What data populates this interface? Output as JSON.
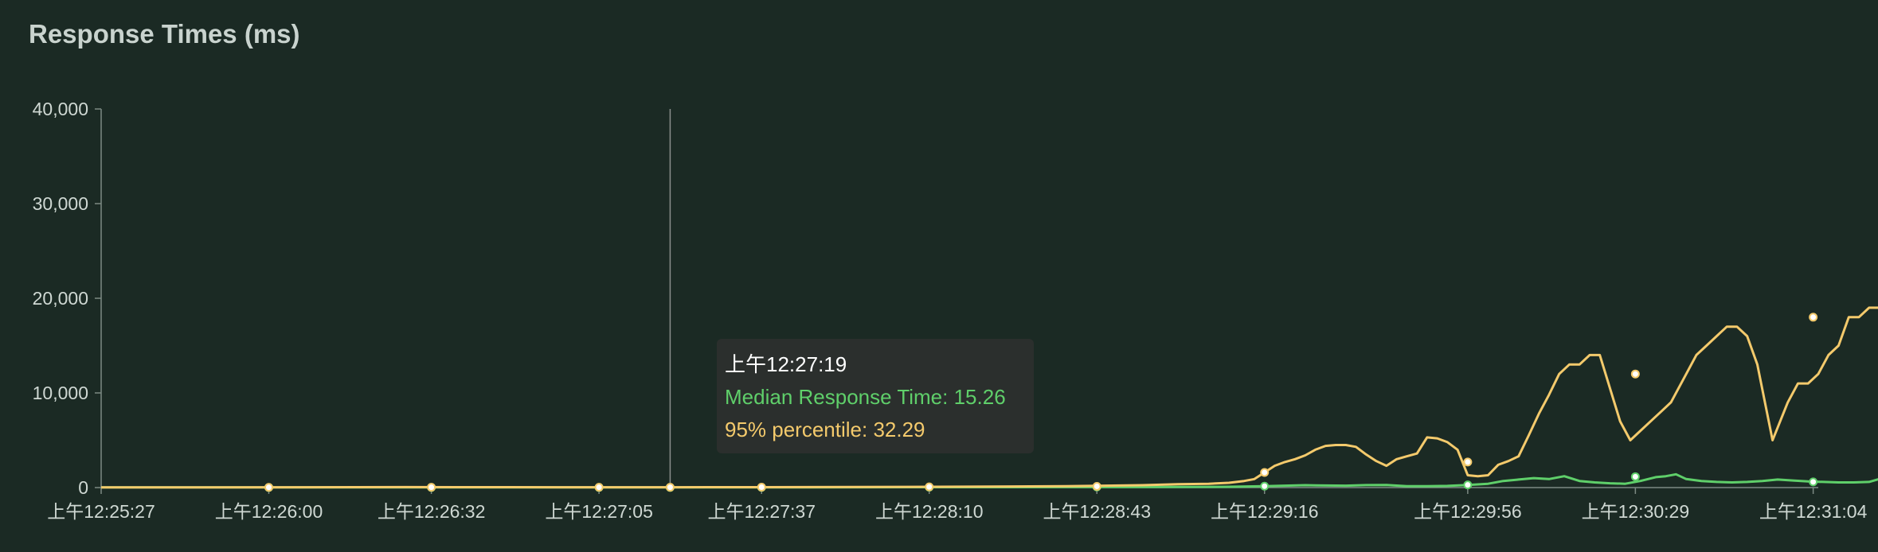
{
  "panel": {
    "title": "Response Times (ms)"
  },
  "colors": {
    "median": "#5fcf6a",
    "p95": "#f4ca6c",
    "axis": "#7c8a83",
    "text": "#cfd8d3",
    "crosshair": "#8a8f8c"
  },
  "tooltip": {
    "time": "上午12:27:19",
    "median_label": "Median Response Time: 15.26",
    "p95_label": "95% percentile: 32.29"
  },
  "chart_data": {
    "type": "line",
    "title": "Response Times (ms)",
    "ylim": [
      0,
      40000
    ],
    "y_ticks": [
      0,
      10000,
      20000,
      30000,
      40000
    ],
    "y_tick_labels": [
      "0",
      "10,000",
      "20,000",
      "30,000",
      "40,000"
    ],
    "x_tick_labels": [
      "上午12:25:27",
      "上午12:26:00",
      "上午12:26:32",
      "上午12:27:05",
      "上午12:27:37",
      "上午12:28:10",
      "上午12:28:43",
      "上午12:29:16",
      "上午12:29:56",
      "上午12:30:29",
      "上午12:31:04"
    ],
    "x_tick_seconds": [
      0,
      33,
      65,
      98,
      130,
      163,
      196,
      229,
      269,
      302,
      337
    ],
    "x_range_seconds": [
      0,
      338
    ],
    "crosshair_seconds": 112,
    "series": [
      {
        "name": "Median Response Time",
        "color": "#5fcf6a",
        "points": [
          [
            0,
            15
          ],
          [
            20,
            15
          ],
          [
            40,
            16
          ],
          [
            60,
            17
          ],
          [
            80,
            18
          ],
          [
            100,
            16
          ],
          [
            112,
            15
          ],
          [
            130,
            20
          ],
          [
            150,
            30
          ],
          [
            170,
            40
          ],
          [
            190,
            50
          ],
          [
            210,
            60
          ],
          [
            222,
            80
          ],
          [
            229,
            150
          ],
          [
            233,
            200
          ],
          [
            237,
            250
          ],
          [
            241,
            220
          ],
          [
            245,
            200
          ],
          [
            249,
            260
          ],
          [
            253,
            280
          ],
          [
            257,
            150
          ],
          [
            261,
            140
          ],
          [
            265,
            180
          ],
          [
            269,
            280
          ],
          [
            273,
            400
          ],
          [
            276,
            700
          ],
          [
            279,
            850
          ],
          [
            282,
            1000
          ],
          [
            285,
            900
          ],
          [
            288,
            1200
          ],
          [
            291,
            700
          ],
          [
            294,
            550
          ],
          [
            297,
            450
          ],
          [
            300,
            400
          ],
          [
            303,
            700
          ],
          [
            306,
            1100
          ],
          [
            308,
            1200
          ],
          [
            310,
            1400
          ],
          [
            312,
            900
          ],
          [
            315,
            700
          ],
          [
            318,
            600
          ],
          [
            321,
            550
          ],
          [
            324,
            600
          ],
          [
            327,
            700
          ],
          [
            330,
            850
          ],
          [
            333,
            750
          ],
          [
            336,
            650
          ],
          [
            339,
            600
          ],
          [
            342,
            550
          ],
          [
            345,
            550
          ],
          [
            348,
            600
          ],
          [
            350,
            900
          ],
          [
            352,
            950
          ],
          [
            354,
            950
          ]
        ],
        "markers": [
          [
            33,
            15
          ],
          [
            65,
            16
          ],
          [
            98,
            16
          ],
          [
            112,
            15.26
          ],
          [
            130,
            20
          ],
          [
            163,
            40
          ],
          [
            196,
            60
          ],
          [
            229,
            150
          ],
          [
            269,
            280
          ],
          [
            302,
            1150
          ],
          [
            337,
            600
          ]
        ]
      },
      {
        "name": "95% percentile",
        "color": "#f4ca6c",
        "points": [
          [
            0,
            20
          ],
          [
            20,
            20
          ],
          [
            40,
            30
          ],
          [
            50,
            40
          ],
          [
            60,
            50
          ],
          [
            70,
            45
          ],
          [
            80,
            40
          ],
          [
            90,
            35
          ],
          [
            100,
            32
          ],
          [
            112,
            32.29
          ],
          [
            130,
            40
          ],
          [
            150,
            60
          ],
          [
            170,
            90
          ],
          [
            190,
            150
          ],
          [
            205,
            250
          ],
          [
            212,
            350
          ],
          [
            218,
            400
          ],
          [
            222,
            500
          ],
          [
            225,
            700
          ],
          [
            227,
            900
          ],
          [
            229,
            1600
          ],
          [
            231,
            2300
          ],
          [
            233,
            2700
          ],
          [
            235,
            3000
          ],
          [
            237,
            3400
          ],
          [
            239,
            4000
          ],
          [
            241,
            4400
          ],
          [
            243,
            4500
          ],
          [
            245,
            4500
          ],
          [
            247,
            4300
          ],
          [
            249,
            3500
          ],
          [
            251,
            2800
          ],
          [
            253,
            2300
          ],
          [
            255,
            3000
          ],
          [
            257,
            3300
          ],
          [
            259,
            3600
          ],
          [
            261,
            5300
          ],
          [
            263,
            5200
          ],
          [
            265,
            4800
          ],
          [
            267,
            4000
          ],
          [
            269,
            1300
          ],
          [
            271,
            1200
          ],
          [
            273,
            1300
          ],
          [
            275,
            2400
          ],
          [
            277,
            2800
          ],
          [
            279,
            3300
          ],
          [
            281,
            5500
          ],
          [
            283,
            7800
          ],
          [
            285,
            9800
          ],
          [
            287,
            12000
          ],
          [
            289,
            13000
          ],
          [
            291,
            13000
          ],
          [
            293,
            14000
          ],
          [
            295,
            14000
          ],
          [
            299,
            7000
          ],
          [
            301,
            5000
          ],
          [
            303,
            6000
          ],
          [
            305,
            7000
          ],
          [
            307,
            8000
          ],
          [
            309,
            9000
          ],
          [
            312,
            12000
          ],
          [
            314,
            14000
          ],
          [
            316,
            15000
          ],
          [
            318,
            16000
          ],
          [
            320,
            17000
          ],
          [
            322,
            17000
          ],
          [
            324,
            16000
          ],
          [
            326,
            13000
          ],
          [
            329,
            5000
          ],
          [
            332,
            9000
          ],
          [
            334,
            11000
          ],
          [
            336,
            11000
          ],
          [
            338,
            12000
          ],
          [
            340,
            14000
          ],
          [
            342,
            15000
          ],
          [
            344,
            18000
          ],
          [
            346,
            18000
          ],
          [
            348,
            19000
          ],
          [
            350,
            19000
          ]
        ],
        "markers": [
          [
            33,
            20
          ],
          [
            65,
            30
          ],
          [
            98,
            33
          ],
          [
            112,
            32.29
          ],
          [
            130,
            40
          ],
          [
            163,
            75
          ],
          [
            196,
            130
          ],
          [
            229,
            1600
          ],
          [
            269,
            2700
          ],
          [
            302,
            12000
          ],
          [
            337,
            18000
          ]
        ]
      }
    ]
  }
}
